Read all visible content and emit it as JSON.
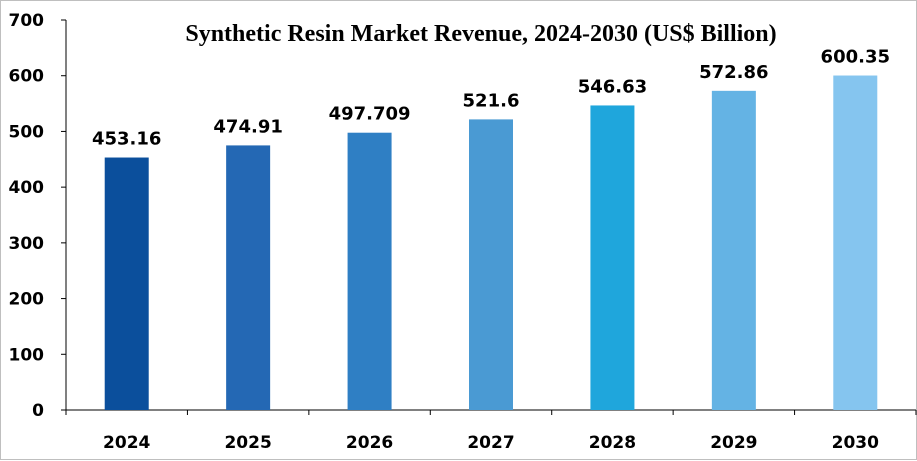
{
  "chart_data": {
    "type": "bar",
    "title": "Synthetic Resin Market Revenue, 2024-2030 (US$ Billion)",
    "xlabel": "",
    "ylabel": "",
    "categories": [
      "2024",
      "2025",
      "2026",
      "2027",
      "2028",
      "2029",
      "2030"
    ],
    "values": [
      453.16,
      474.91,
      497.709,
      521.6,
      546.63,
      572.86,
      600.35
    ],
    "data_labels": [
      "453.16",
      "474.91",
      "497.709",
      "521.6",
      "546.63",
      "572.86",
      "600.35"
    ],
    "bar_colors": [
      "#0b4f9c",
      "#2468b4",
      "#2f7fc4",
      "#4a9ad3",
      "#1fa6dc",
      "#64b3e4",
      "#85c5ef"
    ],
    "ylim": [
      0,
      700
    ],
    "yticks": [
      0,
      100,
      200,
      300,
      400,
      500,
      600,
      700
    ],
    "grid": false,
    "legend": "none"
  }
}
